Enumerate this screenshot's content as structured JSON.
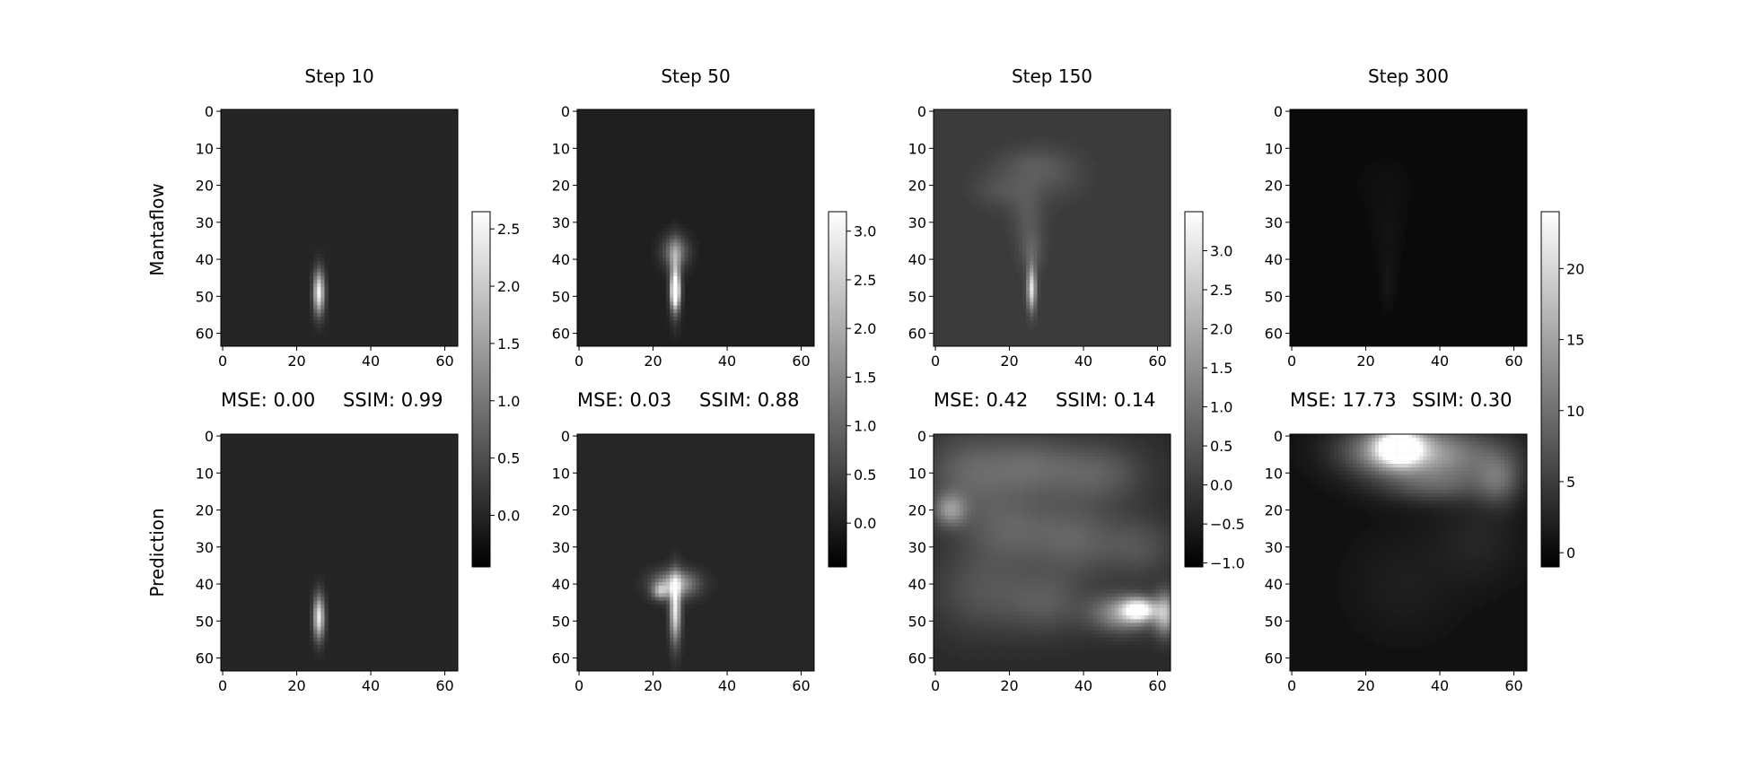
{
  "figure": {
    "row_labels": [
      "Mantaflow",
      "Prediction"
    ]
  },
  "chart_data": [
    {
      "type": "heatmap",
      "title": "Step 10",
      "xlim": [
        0,
        63
      ],
      "ylim": [
        63,
        0
      ],
      "x_ticks": [
        0,
        20,
        40,
        60
      ],
      "y_ticks": [
        0,
        10,
        20,
        30,
        40,
        50,
        60
      ],
      "metrics": {
        "mse_label": "MSE: 0.00",
        "ssim_label": "SSIM: 0.99"
      },
      "colorbar": {
        "min": -0.45,
        "max": 2.65,
        "ticks": [
          0.0,
          0.5,
          1.0,
          1.5,
          2.0,
          2.5
        ],
        "tick_labels": [
          "0.0",
          "0.5",
          "1.0",
          "1.5",
          "2.0",
          "2.5"
        ]
      },
      "background": {
        "ground_truth": 0.0,
        "prediction": 0.0
      },
      "ground_truth": {
        "name": "Mantaflow",
        "blobs": [
          {
            "x": 26,
            "y": 49,
            "rx": 1,
            "ry": 4,
            "v": 2.5
          }
        ]
      },
      "prediction": {
        "name": "Prediction",
        "blobs": [
          {
            "x": 26,
            "y": 49,
            "rx": 1,
            "ry": 4,
            "v": 2.4
          }
        ]
      }
    },
    {
      "type": "heatmap",
      "title": "Step 50",
      "xlim": [
        0,
        63
      ],
      "ylim": [
        63,
        0
      ],
      "x_ticks": [
        0,
        20,
        40,
        60
      ],
      "y_ticks": [
        0,
        10,
        20,
        30,
        40,
        50,
        60
      ],
      "metrics": {
        "mse_label": "MSE: 0.03",
        "ssim_label": "SSIM: 0.88"
      },
      "colorbar": {
        "min": -0.45,
        "max": 3.2,
        "ticks": [
          0.0,
          0.5,
          1.0,
          1.5,
          2.0,
          2.5,
          3.0
        ],
        "tick_labels": [
          "0.0",
          "0.5",
          "1.0",
          "1.5",
          "2.0",
          "2.5",
          "3.0"
        ]
      },
      "background": {
        "ground_truth": 0.0,
        "prediction": 0.1
      },
      "ground_truth": {
        "name": "Mantaflow",
        "blobs": [
          {
            "x": 26,
            "y": 38,
            "rx": 2.5,
            "ry": 3,
            "v": 1.3
          },
          {
            "x": 26,
            "y": 46,
            "rx": 1,
            "ry": 6,
            "v": 2.0
          },
          {
            "x": 26,
            "y": 49,
            "rx": 0.8,
            "ry": 3,
            "v": 2.8
          }
        ]
      },
      "prediction": {
        "name": "Prediction",
        "blobs": [
          {
            "x": 26,
            "y": 40,
            "rx": 4,
            "ry": 2.5,
            "v": 2.0
          },
          {
            "x": 26,
            "y": 47,
            "rx": 1,
            "ry": 6,
            "v": 2.8
          },
          {
            "x": 22,
            "y": 42,
            "rx": 1.5,
            "ry": 1.5,
            "v": 1.5
          }
        ]
      }
    },
    {
      "type": "heatmap",
      "title": "Step 150",
      "xlim": [
        0,
        63
      ],
      "ylim": [
        63,
        0
      ],
      "x_ticks": [
        0,
        20,
        40,
        60
      ],
      "y_ticks": [
        0,
        10,
        20,
        30,
        40,
        50,
        60
      ],
      "metrics": {
        "mse_label": "MSE: 0.42",
        "ssim_label": "SSIM: 0.14"
      },
      "colorbar": {
        "min": -1.05,
        "max": 3.5,
        "ticks": [
          -1.0,
          -0.5,
          0.0,
          0.5,
          1.0,
          1.5,
          2.0,
          2.5,
          3.0
        ],
        "tick_labels": [
          "−1.0",
          "−0.5",
          "0.0",
          "0.5",
          "1.0",
          "1.5",
          "2.0",
          "2.5",
          "3.0"
        ]
      },
      "background": {
        "ground_truth": 0.0,
        "prediction": -0.3
      },
      "ground_truth": {
        "name": "Mantaflow",
        "blobs": [
          {
            "x": 18,
            "y": 21,
            "rx": 5,
            "ry": 3.5,
            "v": 0.45
          },
          {
            "x": 31,
            "y": 17,
            "rx": 6,
            "ry": 4.5,
            "v": 0.45
          },
          {
            "x": 24,
            "y": 14,
            "rx": 6,
            "ry": 3,
            "v": 0.3
          },
          {
            "x": 25,
            "y": 28,
            "rx": 3,
            "ry": 6,
            "v": 0.5
          },
          {
            "x": 26,
            "y": 38,
            "rx": 2,
            "ry": 4,
            "v": 0.6
          },
          {
            "x": 26,
            "y": 48,
            "rx": 0.8,
            "ry": 4,
            "v": 3.0
          }
        ]
      },
      "prediction": {
        "name": "Prediction",
        "blobs": [
          {
            "x": 8,
            "y": 10,
            "rx": 8,
            "ry": 8,
            "v": 0.9
          },
          {
            "x": 25,
            "y": 8,
            "rx": 9,
            "ry": 6,
            "v": 1.0
          },
          {
            "x": 44,
            "y": 10,
            "rx": 9,
            "ry": 6,
            "v": 0.9
          },
          {
            "x": 20,
            "y": 25,
            "rx": 9,
            "ry": 7,
            "v": 0.9
          },
          {
            "x": 38,
            "y": 28,
            "rx": 8,
            "ry": 7,
            "v": 0.9
          },
          {
            "x": 55,
            "y": 30,
            "rx": 7,
            "ry": 6,
            "v": 0.7
          },
          {
            "x": 12,
            "y": 42,
            "rx": 9,
            "ry": 8,
            "v": 0.7
          },
          {
            "x": 30,
            "y": 45,
            "rx": 8,
            "ry": 6,
            "v": 0.8
          },
          {
            "x": 4,
            "y": 20,
            "rx": 3,
            "ry": 3,
            "v": 1.6
          },
          {
            "x": 51,
            "y": 48,
            "rx": 6,
            "ry": 3.5,
            "v": 2.0
          },
          {
            "x": 55,
            "y": 47,
            "rx": 3,
            "ry": 2,
            "v": 3.3
          },
          {
            "x": 62,
            "y": 48,
            "rx": 2,
            "ry": 4,
            "v": 2.3
          }
        ]
      }
    },
    {
      "type": "heatmap",
      "title": "Step 300",
      "xlim": [
        0,
        63
      ],
      "ylim": [
        63,
        0
      ],
      "x_ticks": [
        0,
        20,
        40,
        60
      ],
      "y_ticks": [
        0,
        10,
        20,
        30,
        40,
        50,
        60
      ],
      "metrics": {
        "mse_label": "MSE: 17.73",
        "ssim_label": "SSIM: 0.30"
      },
      "colorbar": {
        "min": -1.0,
        "max": 24.0,
        "ticks": [
          0,
          5,
          10,
          15,
          20
        ],
        "tick_labels": [
          "0",
          "5",
          "10",
          "15",
          "20"
        ]
      },
      "background": {
        "ground_truth": 0.0,
        "prediction": 0.7
      },
      "ground_truth": {
        "name": "Mantaflow",
        "blobs": [
          {
            "x": 25,
            "y": 20,
            "rx": 6,
            "ry": 6,
            "v": 0.5
          },
          {
            "x": 26,
            "y": 33,
            "rx": 3,
            "ry": 6,
            "v": 0.8
          },
          {
            "x": 26,
            "y": 46,
            "rx": 1.5,
            "ry": 5,
            "v": 1.2
          }
        ]
      },
      "prediction": {
        "name": "Prediction",
        "blobs": [
          {
            "x": 28,
            "y": 4,
            "rx": 10,
            "ry": 5,
            "v": 14
          },
          {
            "x": 29,
            "y": 3,
            "rx": 4,
            "ry": 3,
            "v": 22
          },
          {
            "x": 45,
            "y": 6,
            "rx": 12,
            "ry": 6,
            "v": 8
          },
          {
            "x": 56,
            "y": 12,
            "rx": 4,
            "ry": 5,
            "v": 6
          },
          {
            "x": 38,
            "y": 14,
            "rx": 10,
            "ry": 3,
            "v": 4
          },
          {
            "x": 50,
            "y": 28,
            "rx": 8,
            "ry": 8,
            "v": 2
          },
          {
            "x": 30,
            "y": 40,
            "rx": 10,
            "ry": 10,
            "v": 1.2
          }
        ]
      }
    }
  ]
}
